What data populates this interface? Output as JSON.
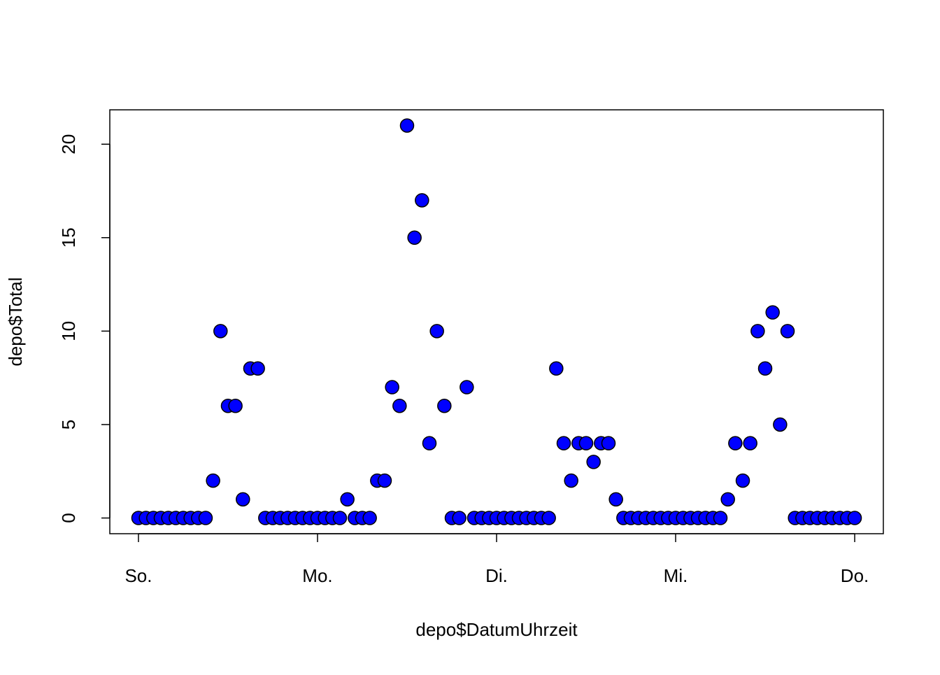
{
  "chart_data": {
    "type": "scatter",
    "x_label": "depo$DatumUhrzeit",
    "y_label": "depo$Total",
    "categories": [
      "So.",
      null,
      null,
      null,
      null,
      null,
      null,
      null,
      null,
      null,
      null,
      null,
      null,
      null,
      null,
      null,
      null,
      null,
      null,
      null,
      null,
      null,
      null,
      null,
      "Mo.",
      null,
      null,
      null,
      null,
      null,
      null,
      null,
      null,
      null,
      null,
      null,
      null,
      null,
      null,
      null,
      null,
      null,
      null,
      null,
      null,
      null,
      null,
      null,
      "Di.",
      null,
      null,
      null,
      null,
      null,
      null,
      null,
      null,
      null,
      null,
      null,
      null,
      null,
      null,
      null,
      null,
      null,
      null,
      null,
      null,
      null,
      null,
      null,
      "Mi.",
      null,
      null,
      null,
      null,
      null,
      null,
      null,
      null,
      null,
      null,
      null,
      null,
      null,
      null,
      null,
      null,
      null,
      null,
      null,
      null,
      null,
      null,
      null,
      "Do."
    ],
    "values": [
      0,
      0,
      0,
      0,
      0,
      0,
      0,
      0,
      0,
      0,
      2,
      10,
      6,
      6,
      1,
      8,
      8,
      0,
      0,
      0,
      0,
      0,
      0,
      0,
      0,
      0,
      0,
      0,
      1,
      0,
      0,
      0,
      2,
      2,
      7,
      6,
      21,
      15,
      17,
      4,
      10,
      6,
      0,
      0,
      7,
      0,
      0,
      0,
      0,
      0,
      0,
      0,
      0,
      0,
      0,
      0,
      8,
      4,
      2,
      4,
      4,
      3,
      4,
      4,
      1,
      0,
      0,
      0,
      0,
      0,
      0,
      0,
      0,
      0,
      0,
      0,
      0,
      0,
      0,
      1,
      4,
      2,
      4,
      10,
      8,
      11,
      5,
      10,
      0,
      0,
      0,
      0,
      0,
      0,
      0,
      0,
      0
    ],
    "color": "#0000ff",
    "ylim": [
      -0.84,
      21.84
    ],
    "yticks": [
      0,
      5,
      10,
      15,
      20
    ]
  }
}
